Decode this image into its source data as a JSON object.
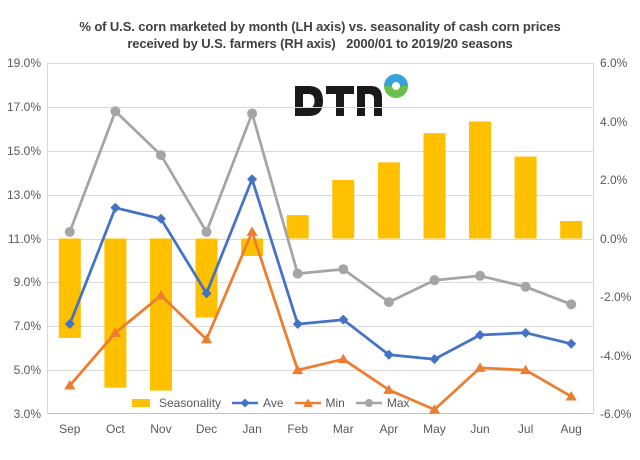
{
  "title": {
    "line1": "% of U.S. corn marketed by month (LH axis) vs. seasonality of cash corn prices",
    "line2": "received by U.S. farmers (RH axis)   2000/01 to 2019/20 seasons"
  },
  "logo": {
    "name": "DTN",
    "letters_color": "#1a1a1a",
    "ring_top_color": "#35a2db",
    "ring_bottom_color": "#6abf4b"
  },
  "chart_data": {
    "type": "bar",
    "subtype": "bar+line combo, dual axis",
    "categories": [
      "Sep",
      "Oct",
      "Nov",
      "Dec",
      "Jan",
      "Feb",
      "Mar",
      "Apr",
      "May",
      "Jun",
      "Jul",
      "Aug"
    ],
    "series": [
      {
        "name": "Seasonality",
        "type": "bar",
        "axis": "right",
        "color": "#FFC000",
        "values": [
          -3.4,
          -5.1,
          -5.2,
          -2.7,
          -0.6,
          0.8,
          2.0,
          2.6,
          3.6,
          4.0,
          2.8,
          0.6
        ]
      },
      {
        "name": "Ave",
        "type": "line",
        "marker": "diamond",
        "axis": "left",
        "color": "#4472C4",
        "values": [
          7.1,
          12.4,
          11.9,
          8.5,
          13.7,
          7.1,
          7.3,
          5.7,
          5.5,
          6.6,
          6.7,
          6.2
        ]
      },
      {
        "name": "Min",
        "type": "line",
        "marker": "triangle",
        "axis": "left",
        "color": "#ED7D31",
        "values": [
          4.3,
          6.7,
          8.4,
          6.4,
          11.3,
          5.0,
          5.5,
          4.1,
          3.2,
          5.1,
          5.0,
          3.8
        ]
      },
      {
        "name": "Max",
        "type": "line",
        "marker": "circle",
        "axis": "left",
        "color": "#A5A5A5",
        "values": [
          11.3,
          16.8,
          14.8,
          11.3,
          16.7,
          9.4,
          9.6,
          8.1,
          9.1,
          9.3,
          8.8,
          8.0
        ]
      }
    ],
    "left_axis": {
      "min": 3,
      "max": 19,
      "step": 2,
      "tick_labels": [
        "19.0%",
        "17.0%",
        "15.0%",
        "13.0%",
        "11.0%",
        "9.0%",
        "7.0%",
        "5.0%",
        "3.0%"
      ]
    },
    "right_axis": {
      "min": -6,
      "max": 6,
      "step": 2,
      "tick_labels": [
        "6.0%",
        "4.0%",
        "2.0%",
        "0.0%",
        "-2.0%",
        "-4.0%",
        "-6.0%"
      ]
    },
    "grid": true,
    "legend_position": "bottom-inside",
    "colors": {
      "grid": "#D9D9D9",
      "axis_line": "#BFBFBF",
      "axis_text": "#595959",
      "title_text": "#404040"
    }
  }
}
